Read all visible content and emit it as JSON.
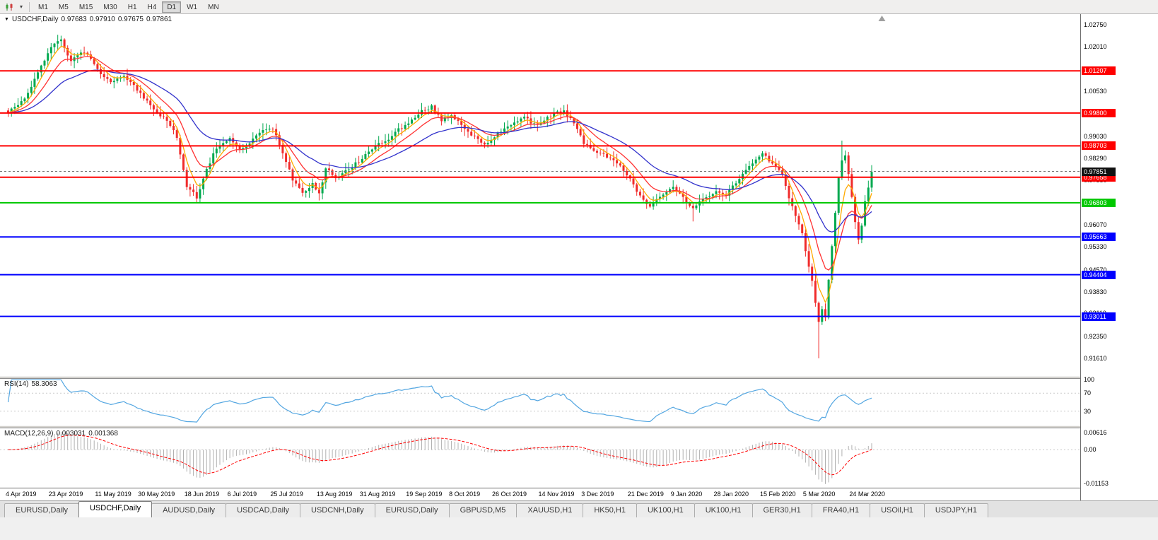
{
  "toolbar": {
    "timeframes": [
      "M1",
      "M5",
      "M15",
      "M30",
      "H1",
      "H4",
      "D1",
      "W1",
      "MN"
    ],
    "active_timeframe": "D1"
  },
  "colors": {
    "candle_up": "#00a94f",
    "candle_down": "#f02b2b",
    "red": "#ff0000",
    "green": "#00c800",
    "blue": "#0000ff",
    "ma_fast": "#ffaa00",
    "ma_mid": "#ff3333",
    "ma_slow": "#3333cc",
    "rsi": "#53a6e1",
    "macd_bar": "#b0b0b0",
    "macd_signal": "#ff0000",
    "current_box": "#111111"
  },
  "chart": {
    "title": {
      "symbol": "USDCHF,Daily",
      "open": "0.97683",
      "high": "0.97910",
      "low": "0.97675",
      "close": "0.97861"
    },
    "current_price_label": "0.97851",
    "price_axis": {
      "ticks": [
        "1.02750",
        "1.02010",
        "1.01270",
        "1.00530",
        "0.99790",
        "0.99030",
        "0.98290",
        "0.97550",
        "0.96810",
        "0.96070",
        "0.95330",
        "0.94570",
        "0.93830",
        "0.93110",
        "0.92350",
        "0.91610"
      ]
    },
    "hlines": [
      {
        "price": 1.01207,
        "label": "1.01207",
        "color": "red"
      },
      {
        "price": 0.998,
        "label": "0.99800",
        "color": "red"
      },
      {
        "price": 0.98703,
        "label": "0.98703",
        "color": "red"
      },
      {
        "price": 0.97658,
        "label": "0.97658",
        "color": "red"
      },
      {
        "price": 0.96803,
        "label": "0.96803",
        "color": "green"
      },
      {
        "price": 0.95663,
        "label": "0.95663",
        "color": "blue"
      },
      {
        "price": 0.94404,
        "label": "0.94404",
        "color": "blue"
      },
      {
        "price": 0.93011,
        "label": "0.93011",
        "color": "blue"
      }
    ],
    "date_axis": {
      "labels": [
        "4 Apr 2019",
        "23 Apr 2019",
        "11 May 2019",
        "30 May 2019",
        "18 Jun 2019",
        "6 Jul 2019",
        "25 Jul 2019",
        "13 Aug 2019",
        "31 Aug 2019",
        "19 Sep 2019",
        "8 Oct 2019",
        "26 Oct 2019",
        "14 Nov 2019",
        "3 Dec 2019",
        "21 Dec 2019",
        "9 Jan 2020",
        "28 Jan 2020",
        "15 Feb 2020",
        "5 Mar 2020",
        "24 Mar 2020"
      ],
      "indices": [
        0,
        13,
        27,
        40,
        54,
        67,
        80,
        94,
        107,
        121,
        134,
        147,
        161,
        174,
        188,
        201,
        214,
        228,
        241,
        255
      ]
    },
    "chart_data": {
      "type": "candlestick",
      "symbol": "USDCHF",
      "period": "Daily",
      "count": 262,
      "seed": 97,
      "noise": 0.0011,
      "wick": 0.0022,
      "price_range": [
        0.9161,
        1.0275
      ],
      "anchors": [
        [
          0,
          0.9985
        ],
        [
          3,
          1.0005
        ],
        [
          6,
          1.0045
        ],
        [
          10,
          1.0135
        ],
        [
          13,
          1.0205
        ],
        [
          16,
          1.0225
        ],
        [
          19,
          1.015
        ],
        [
          22,
          1.0185
        ],
        [
          25,
          1.0165
        ],
        [
          27,
          1.0125
        ],
        [
          31,
          1.0085
        ],
        [
          35,
          1.0105
        ],
        [
          40,
          1.0045
        ],
        [
          44,
          0.999
        ],
        [
          48,
          0.9955
        ],
        [
          51,
          0.99
        ],
        [
          54,
          0.9735
        ],
        [
          57,
          0.97
        ],
        [
          60,
          0.979
        ],
        [
          63,
          0.9865
        ],
        [
          67,
          0.9895
        ],
        [
          70,
          0.9855
        ],
        [
          73,
          0.988
        ],
        [
          76,
          0.9915
        ],
        [
          80,
          0.993
        ],
        [
          83,
          0.985
        ],
        [
          86,
          0.976
        ],
        [
          89,
          0.9715
        ],
        [
          92,
          0.9745
        ],
        [
          94,
          0.971
        ],
        [
          96,
          0.9795
        ],
        [
          99,
          0.9765
        ],
        [
          103,
          0.979
        ],
        [
          107,
          0.983
        ],
        [
          111,
          0.987
        ],
        [
          115,
          0.9895
        ],
        [
          118,
          0.9925
        ],
        [
          121,
          0.9945
        ],
        [
          125,
          0.9985
        ],
        [
          128,
          1.0
        ],
        [
          131,
          0.9955
        ],
        [
          134,
          0.9975
        ],
        [
          138,
          0.993
        ],
        [
          141,
          0.99
        ],
        [
          144,
          0.987
        ],
        [
          147,
          0.99
        ],
        [
          150,
          0.993
        ],
        [
          153,
          0.995
        ],
        [
          156,
          0.9965
        ],
        [
          159,
          0.994
        ],
        [
          162,
          0.9955
        ],
        [
          165,
          0.998
        ],
        [
          168,
          0.9985
        ],
        [
          171,
          0.9945
        ],
        [
          174,
          0.988
        ],
        [
          178,
          0.985
        ],
        [
          182,
          0.983
        ],
        [
          186,
          0.979
        ],
        [
          188,
          0.976
        ],
        [
          191,
          0.97
        ],
        [
          194,
          0.967
        ],
        [
          197,
          0.9705
        ],
        [
          201,
          0.973
        ],
        [
          204,
          0.97
        ],
        [
          207,
          0.966
        ],
        [
          210,
          0.969
        ],
        [
          214,
          0.972
        ],
        [
          217,
          0.9705
        ],
        [
          220,
          0.975
        ],
        [
          224,
          0.98
        ],
        [
          228,
          0.984
        ],
        [
          231,
          0.9815
        ],
        [
          234,
          0.9775
        ],
        [
          236,
          0.97
        ],
        [
          238,
          0.9635
        ],
        [
          240,
          0.9575
        ],
        [
          241,
          0.952
        ],
        [
          243,
          0.942
        ],
        [
          245,
          0.928
        ],
        [
          246,
          0.933
        ],
        [
          247,
          0.93
        ],
        [
          248,
          0.942
        ],
        [
          249,
          0.953
        ],
        [
          250,
          0.965
        ],
        [
          251,
          0.976
        ],
        [
          252,
          0.982
        ],
        [
          253,
          0.984
        ],
        [
          254,
          0.978
        ],
        [
          255,
          0.97
        ],
        [
          256,
          0.962
        ],
        [
          257,
          0.956
        ],
        [
          258,
          0.96
        ],
        [
          259,
          0.968
        ],
        [
          260,
          0.973
        ],
        [
          261,
          0.9786
        ]
      ],
      "spikes": [
        {
          "i": 16,
          "high": 1.0238
        },
        {
          "i": 94,
          "low": 0.9688
        },
        {
          "i": 207,
          "low": 0.9618
        },
        {
          "i": 245,
          "low": 0.9161
        },
        {
          "i": 252,
          "high": 0.9888
        }
      ],
      "ohlc_current": {
        "open": 0.97683,
        "high": 0.9791,
        "low": 0.97675,
        "close": 0.97861
      }
    }
  },
  "rsi": {
    "name": "RSI(14)",
    "value": "58.3063",
    "levels": [
      "100",
      "70",
      "30"
    ]
  },
  "macd": {
    "name": "MACD(12,26,9)",
    "value_main": "0.003031",
    "value_signal": "0.001368",
    "axis_max": "0.00616",
    "axis_zero": "0.00",
    "axis_min": "-0.01153"
  },
  "tabs": {
    "active_index": 1,
    "items": [
      "EURUSD,Daily",
      "USDCHF,Daily",
      "AUDUSD,Daily",
      "USDCAD,Daily",
      "USDCNH,Daily",
      "EURUSD,Daily",
      "GBPUSD,M5",
      "XAUUSD,H1",
      "HK50,H1",
      "UK100,H1",
      "UK100,H1",
      "GER30,H1",
      "FRA40,H1",
      "USOil,H1",
      "USDJPY,H1"
    ]
  }
}
